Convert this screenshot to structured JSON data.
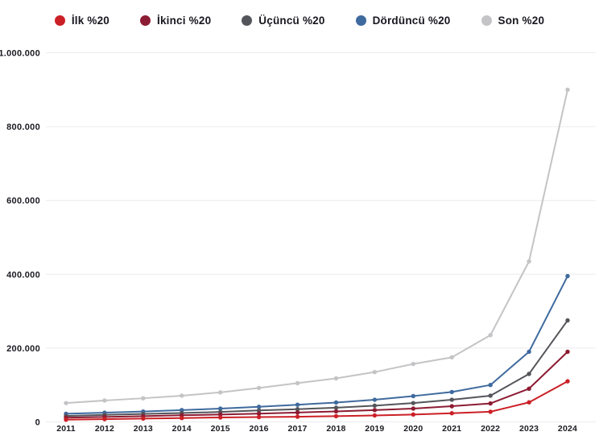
{
  "accent_colors": {
    "grid": "#ebebee",
    "axis_text": "#1b1b22",
    "background": "#ffffff"
  },
  "chart_data": {
    "type": "line",
    "title": "",
    "xlabel": "",
    "ylabel": "",
    "grid": true,
    "legend_position": "top",
    "x_labels": [
      "2011",
      "2012",
      "2013",
      "2014",
      "2015",
      "2016",
      "2017",
      "2018",
      "2019",
      "2020",
      "2021",
      "2022",
      "2023",
      "2024"
    ],
    "ylim": [
      0,
      1000000
    ],
    "yticks": [
      {
        "value": 0,
        "label": "0"
      },
      {
        "value": 200000,
        "label": "200.000"
      },
      {
        "value": 400000,
        "label": "400.000"
      },
      {
        "value": 600000,
        "label": "600.000"
      },
      {
        "value": 800000,
        "label": "800.000"
      },
      {
        "value": 1000000,
        "label": "1.000.000"
      }
    ],
    "series": [
      {
        "name": "Son %20",
        "color": "#c4c4c7",
        "values": [
          51000,
          58000,
          64000,
          71000,
          80000,
          92000,
          105000,
          118000,
          135000,
          157000,
          175000,
          235000,
          435000,
          900000
        ]
      },
      {
        "name": "Dördüncü %20",
        "color": "#3f6a9e",
        "values": [
          22000,
          25000,
          28000,
          32000,
          36000,
          41000,
          46500,
          52500,
          60000,
          70000,
          81000,
          100000,
          190000,
          395000
        ]
      },
      {
        "name": "Üçüncü %20",
        "color": "#54555a",
        "values": [
          16000,
          19000,
          21500,
          24000,
          27000,
          31000,
          34500,
          38500,
          44000,
          51000,
          60000,
          71000,
          130000,
          275000
        ]
      },
      {
        "name": "İkinci %20",
        "color": "#8c1c33",
        "values": [
          11500,
          13500,
          15500,
          18000,
          20000,
          22500,
          25500,
          28500,
          32000,
          36000,
          42500,
          50000,
          90000,
          190000
        ]
      },
      {
        "name": "İlk %20",
        "color": "#cb2026",
        "values": [
          6000,
          7500,
          9000,
          10500,
          12000,
          13000,
          14000,
          15500,
          17500,
          20000,
          23500,
          27500,
          53000,
          110000
        ]
      }
    ],
    "legend_order": [
      "İlk %20",
      "İkinci %20",
      "Üçüncü %20",
      "Dördüncü %20",
      "Son %20"
    ]
  }
}
